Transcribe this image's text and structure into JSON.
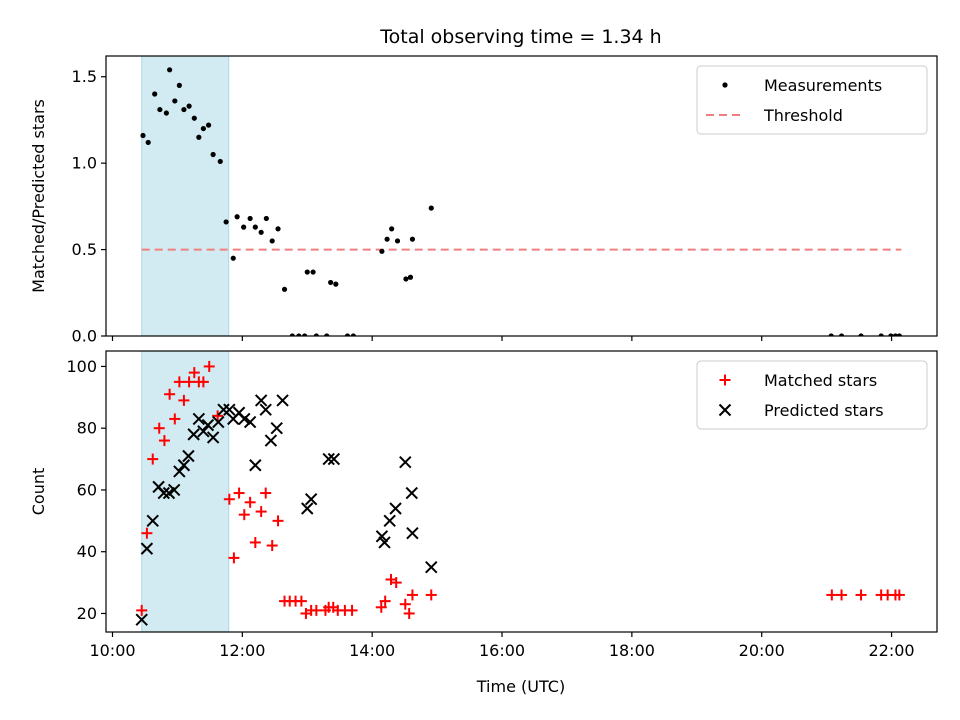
{
  "chart_data": {
    "title": "Total observing time = 1.34 h",
    "colors": {
      "measurements": "#000000",
      "threshold": "#f08080",
      "matched": "#ff0000",
      "predicted": "#000000",
      "highlight": "#add8e6"
    },
    "x_axis": {
      "label": "Time (UTC)",
      "range_hours": [
        9.9,
        22.7
      ],
      "ticks": [
        {
          "value": 10,
          "label": "10:00"
        },
        {
          "value": 12,
          "label": "12:00"
        },
        {
          "value": 14,
          "label": "14:00"
        },
        {
          "value": 16,
          "label": "16:00"
        },
        {
          "value": 18,
          "label": "18:00"
        },
        {
          "value": 20,
          "label": "20:00"
        },
        {
          "value": 22,
          "label": "22:00"
        }
      ]
    },
    "highlight_span_hours": [
      10.45,
      11.79
    ],
    "panels": [
      {
        "type": "scatter",
        "ylabel": "Matched/Predicted stars",
        "ylim": [
          0,
          1.62
        ],
        "yticks": [
          {
            "value": 0.0,
            "label": "0.0"
          },
          {
            "value": 0.5,
            "label": "0.5"
          },
          {
            "value": 1.0,
            "label": "1.0"
          },
          {
            "value": 1.5,
            "label": "1.5"
          }
        ],
        "threshold": {
          "name": "Threshold",
          "value": 0.5,
          "x_range": [
            10.45,
            22.15
          ]
        },
        "legend": {
          "position": "upper right",
          "entries": [
            "Measurements",
            "Threshold"
          ]
        },
        "series": [
          {
            "name": "Measurements",
            "marker": "dot",
            "points": [
              [
                10.47,
                1.16
              ],
              [
                10.55,
                1.12
              ],
              [
                10.65,
                1.4
              ],
              [
                10.73,
                1.31
              ],
              [
                10.83,
                1.29
              ],
              [
                10.88,
                1.54
              ],
              [
                10.96,
                1.36
              ],
              [
                11.03,
                1.45
              ],
              [
                11.1,
                1.31
              ],
              [
                11.18,
                1.33
              ],
              [
                11.26,
                1.26
              ],
              [
                11.33,
                1.15
              ],
              [
                11.4,
                1.2
              ],
              [
                11.48,
                1.22
              ],
              [
                11.55,
                1.05
              ],
              [
                11.66,
                1.01
              ],
              [
                11.75,
                0.66
              ],
              [
                11.86,
                0.45
              ],
              [
                11.92,
                0.69
              ],
              [
                12.02,
                0.63
              ],
              [
                12.12,
                0.68
              ],
              [
                12.2,
                0.63
              ],
              [
                12.29,
                0.6
              ],
              [
                12.37,
                0.68
              ],
              [
                12.46,
                0.55
              ],
              [
                12.55,
                0.62
              ],
              [
                12.65,
                0.27
              ],
              [
                12.77,
                0.0
              ],
              [
                12.87,
                0.0
              ],
              [
                12.96,
                0.0
              ],
              [
                13.0,
                0.37
              ],
              [
                13.09,
                0.37
              ],
              [
                13.14,
                0.0
              ],
              [
                13.3,
                0.0
              ],
              [
                13.36,
                0.31
              ],
              [
                13.44,
                0.3
              ],
              [
                13.62,
                0.0
              ],
              [
                13.71,
                0.0
              ],
              [
                14.15,
                0.49
              ],
              [
                14.23,
                0.56
              ],
              [
                14.3,
                0.62
              ],
              [
                14.39,
                0.55
              ],
              [
                14.52,
                0.33
              ],
              [
                14.59,
                0.34
              ],
              [
                14.62,
                0.56
              ],
              [
                14.91,
                0.74
              ],
              [
                21.07,
                0.0
              ],
              [
                21.23,
                0.0
              ],
              [
                21.53,
                0.0
              ],
              [
                21.84,
                0.0
              ],
              [
                21.99,
                0.0
              ],
              [
                22.06,
                0.0
              ],
              [
                22.12,
                0.0
              ]
            ]
          }
        ]
      },
      {
        "type": "scatter",
        "ylabel": "Count",
        "ylim": [
          14,
          105
        ],
        "yticks": [
          {
            "value": 20,
            "label": "20"
          },
          {
            "value": 40,
            "label": "40"
          },
          {
            "value": 60,
            "label": "60"
          },
          {
            "value": 80,
            "label": "80"
          },
          {
            "value": 100,
            "label": "100"
          }
        ],
        "legend": {
          "position": "upper right",
          "entries": [
            "Matched stars",
            "Predicted stars"
          ]
        },
        "series": [
          {
            "name": "Matched stars",
            "marker": "plus",
            "points": [
              [
                10.45,
                21
              ],
              [
                10.53,
                46
              ],
              [
                10.62,
                70
              ],
              [
                10.72,
                80
              ],
              [
                10.8,
                76
              ],
              [
                10.88,
                91
              ],
              [
                10.96,
                83
              ],
              [
                11.03,
                95
              ],
              [
                11.1,
                89
              ],
              [
                11.18,
                95
              ],
              [
                11.26,
                98
              ],
              [
                11.33,
                95
              ],
              [
                11.4,
                95
              ],
              [
                11.49,
                100
              ],
              [
                11.62,
                84
              ],
              [
                11.8,
                57
              ],
              [
                11.87,
                38
              ],
              [
                11.95,
                59
              ],
              [
                12.03,
                52
              ],
              [
                12.12,
                56
              ],
              [
                12.2,
                43
              ],
              [
                12.29,
                53
              ],
              [
                12.36,
                59
              ],
              [
                12.46,
                42
              ],
              [
                12.55,
                50
              ],
              [
                12.65,
                24
              ],
              [
                12.73,
                24
              ],
              [
                12.82,
                24
              ],
              [
                12.91,
                24
              ],
              [
                12.98,
                20
              ],
              [
                13.06,
                21
              ],
              [
                13.14,
                21
              ],
              [
                13.28,
                21
              ],
              [
                13.33,
                22
              ],
              [
                13.4,
                22
              ],
              [
                13.47,
                21
              ],
              [
                13.58,
                21
              ],
              [
                13.69,
                21
              ],
              [
                14.14,
                22
              ],
              [
                14.2,
                24
              ],
              [
                14.29,
                31
              ],
              [
                14.37,
                30
              ],
              [
                14.51,
                23
              ],
              [
                14.57,
                20
              ],
              [
                14.62,
                26
              ],
              [
                14.91,
                26
              ],
              [
                21.08,
                26
              ],
              [
                21.23,
                26
              ],
              [
                21.53,
                26
              ],
              [
                21.84,
                26
              ],
              [
                21.94,
                26
              ],
              [
                22.06,
                26
              ],
              [
                22.12,
                26
              ]
            ]
          },
          {
            "name": "Predicted stars",
            "marker": "x",
            "points": [
              [
                10.45,
                18
              ],
              [
                10.53,
                41
              ],
              [
                10.62,
                50
              ],
              [
                10.71,
                61
              ],
              [
                10.79,
                59
              ],
              [
                10.87,
                59
              ],
              [
                10.95,
                60
              ],
              [
                11.03,
                66
              ],
              [
                11.1,
                68
              ],
              [
                11.17,
                71
              ],
              [
                11.25,
                78
              ],
              [
                11.33,
                83
              ],
              [
                11.4,
                79
              ],
              [
                11.47,
                81
              ],
              [
                11.55,
                77
              ],
              [
                11.63,
                82
              ],
              [
                11.71,
                86
              ],
              [
                11.8,
                86
              ],
              [
                11.86,
                83
              ],
              [
                11.95,
                85
              ],
              [
                12.03,
                83
              ],
              [
                12.12,
                82
              ],
              [
                12.2,
                68
              ],
              [
                12.29,
                89
              ],
              [
                12.36,
                86
              ],
              [
                12.44,
                76
              ],
              [
                12.53,
                80
              ],
              [
                12.62,
                89
              ],
              [
                13.0,
                54
              ],
              [
                13.06,
                57
              ],
              [
                13.33,
                70
              ],
              [
                13.41,
                70
              ],
              [
                14.15,
                45
              ],
              [
                14.19,
                43
              ],
              [
                14.27,
                50
              ],
              [
                14.36,
                54
              ],
              [
                14.51,
                69
              ],
              [
                14.61,
                59
              ],
              [
                14.62,
                46
              ],
              [
                14.91,
                35
              ]
            ]
          }
        ]
      }
    ]
  }
}
